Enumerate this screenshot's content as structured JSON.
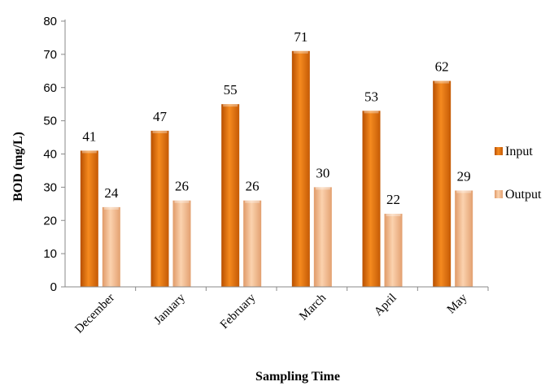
{
  "chart_data": {
    "type": "bar",
    "title": "",
    "xlabel": "Sampling Time",
    "ylabel": "BOD (mg/L)",
    "ylim": [
      0,
      80
    ],
    "yticks": [
      0,
      10,
      20,
      30,
      40,
      50,
      60,
      70,
      80
    ],
    "categories": [
      "December",
      "January",
      "February",
      "March",
      "April",
      "May"
    ],
    "series": [
      {
        "name": "Input",
        "values": [
          41,
          47,
          55,
          71,
          53,
          62
        ],
        "color": "#E8720C"
      },
      {
        "name": "Output",
        "values": [
          24,
          26,
          26,
          30,
          22,
          29
        ],
        "color": "#F2B88A"
      }
    ],
    "grid": false,
    "legend_position": "right",
    "data_labels": true
  }
}
